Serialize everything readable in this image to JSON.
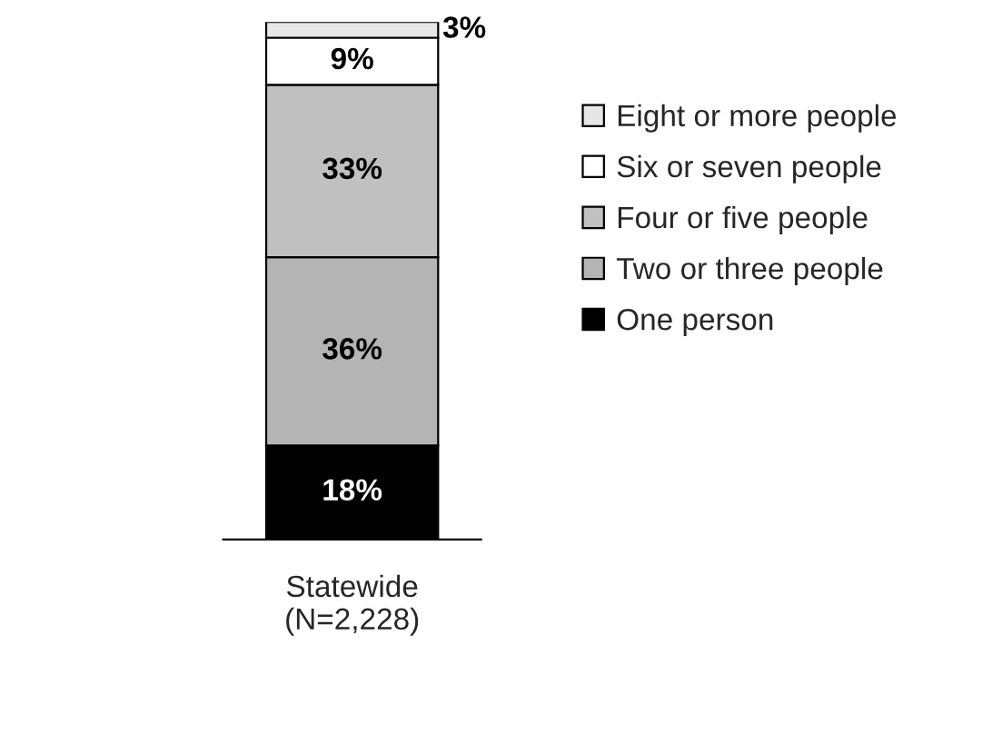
{
  "chart_data": {
    "type": "bar",
    "stacked": true,
    "categories": [
      "Statewide\n(N=2,228)"
    ],
    "series": [
      {
        "name": "One person",
        "color": "#000000",
        "values": [
          18
        ],
        "value_labels": [
          "18%"
        ]
      },
      {
        "name": "Two or three people",
        "color": "#b4b4b4",
        "values": [
          36
        ],
        "value_labels": [
          "36%"
        ]
      },
      {
        "name": "Four or five people",
        "color": "#c0c0c0",
        "values": [
          33
        ],
        "value_labels": [
          "33%"
        ]
      },
      {
        "name": "Six or seven people",
        "color": "#ffffff",
        "values": [
          9
        ],
        "value_labels": [
          "9%"
        ]
      },
      {
        "name": "Eight or more people",
        "color": "#e6e6e6",
        "values": [
          3
        ],
        "value_labels": [
          "3%"
        ]
      }
    ],
    "legend": "right"
  }
}
